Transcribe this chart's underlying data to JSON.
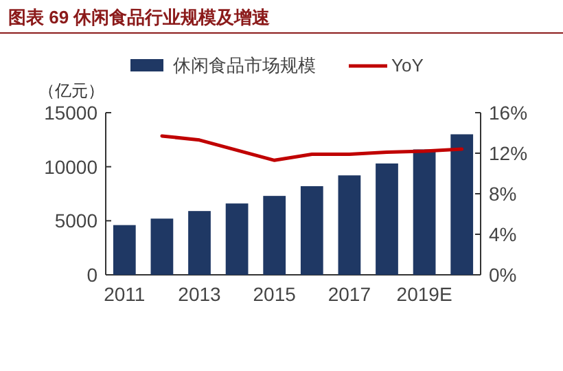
{
  "chart_data": {
    "type": "bar",
    "title": "图表 69 休闲食品行业规模及增速",
    "ylabel": "（亿元）",
    "categories": [
      "2011",
      null,
      "2013",
      null,
      "2015",
      null,
      "2017",
      null,
      "2019E",
      null
    ],
    "series": [
      {
        "name": "休闲食品市场规模",
        "color": "#1f3864",
        "values": [
          4600,
          5200,
          5900,
          6600,
          7300,
          8200,
          9200,
          10300,
          11600,
          13000
        ]
      },
      {
        "name": "YoY",
        "type": "line",
        "axis": "y2",
        "color": "#c00000",
        "values": [
          null,
          13.7,
          13.3,
          12.3,
          11.3,
          11.9,
          11.9,
          12.1,
          12.2,
          12.4
        ]
      }
    ],
    "ylim": [
      0,
      15000
    ],
    "yticks": [
      0,
      5000,
      10000,
      15000
    ],
    "y2lim": [
      0,
      16
    ],
    "y2ticks": [
      {
        "value": 0,
        "label": "0%"
      },
      {
        "value": 4,
        "label": "4%"
      },
      {
        "value": 8,
        "label": "8%"
      },
      {
        "value": 12,
        "label": "12%"
      },
      {
        "value": 16,
        "label": "16%"
      }
    ],
    "legend": "top",
    "grid": false
  }
}
